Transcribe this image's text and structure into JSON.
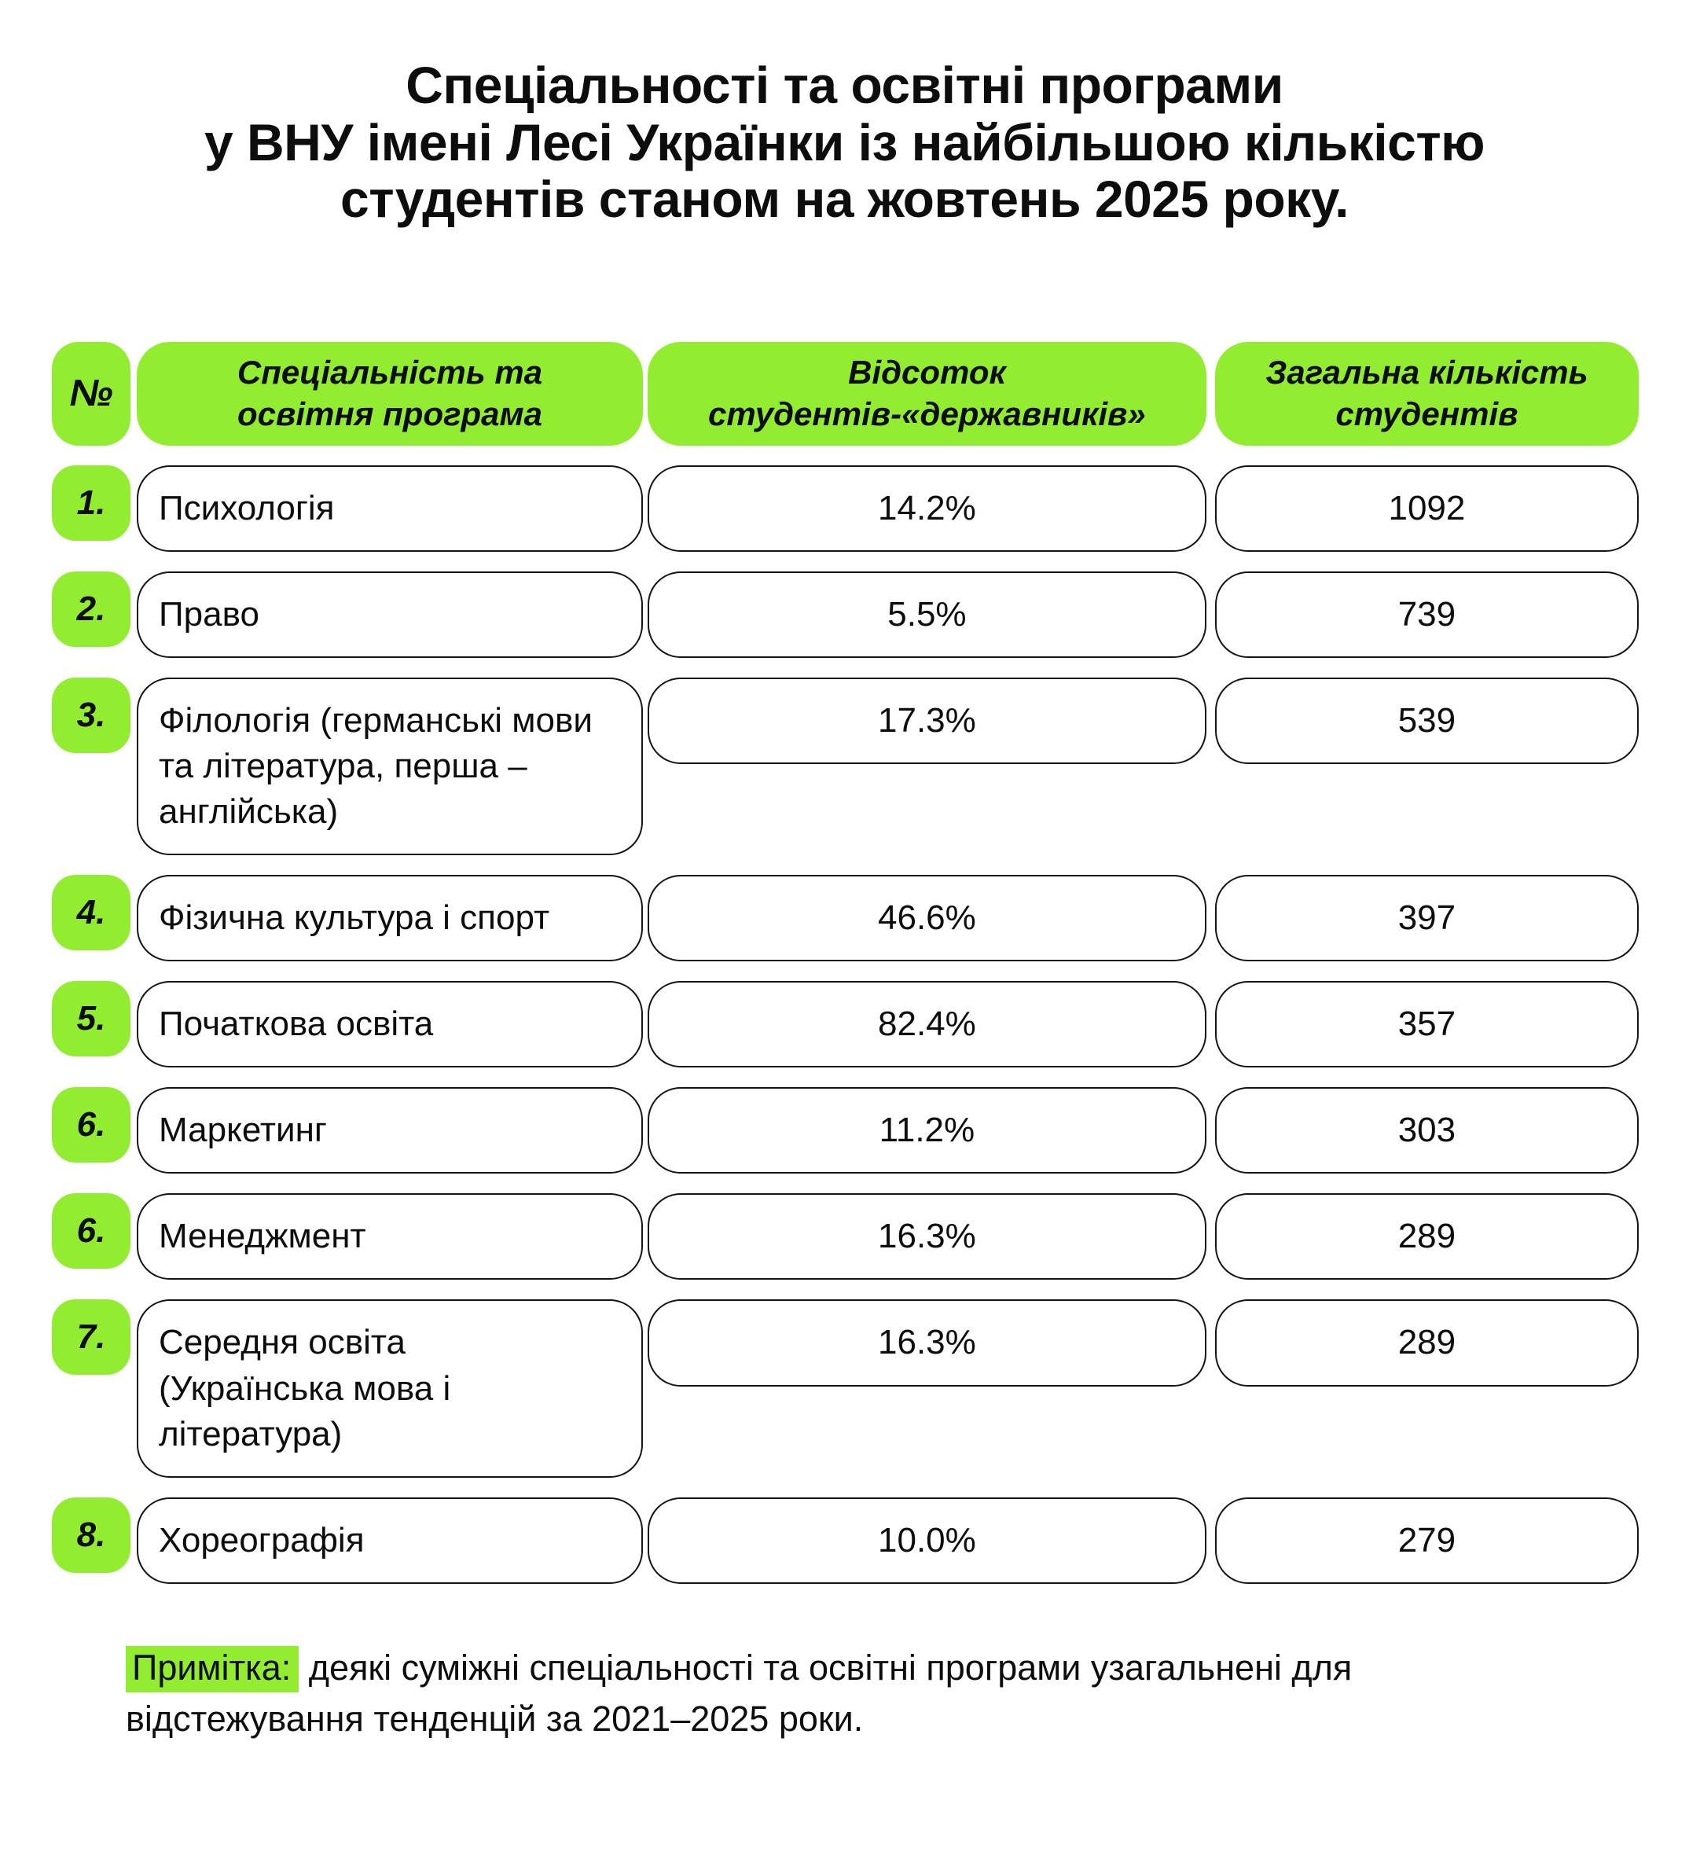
{
  "chart_data": {
    "type": "table",
    "title": "Спеціальності та освітні програми у ВНУ імені Лесі Українки із найбільшою кількістю студентів станом на жовтень 2025 року.",
    "columns": [
      "№",
      "Спеціальність та освітня програма",
      "Відсоток студентів-«державників»",
      "Загальна кількість студентів"
    ],
    "rows": [
      [
        "1.",
        "Психологія",
        "14.2%",
        1092
      ],
      [
        "2.",
        "Право",
        "5.5%",
        739
      ],
      [
        "3.",
        "Філологія (германські мови та література, перша – англійська)",
        "17.3%",
        539
      ],
      [
        "4.",
        "Фізична культура і спорт",
        "46.6%",
        397
      ],
      [
        "5.",
        "Початкова освіта",
        "82.4%",
        357
      ],
      [
        "6.",
        "Маркетинг",
        "11.2%",
        303
      ],
      [
        "6.",
        "Менеджмент",
        "16.3%",
        289
      ],
      [
        "7.",
        "Середня освіта (Українська мова і література)",
        "16.3%",
        289
      ],
      [
        "8.",
        "Хореографія",
        "10.0%",
        279
      ]
    ],
    "note": "Примітка: деякі суміжні спеціальності та освітні програми узагальнені для відстежування тенденцій за 2021–2025 роки.",
    "legend_position": "none",
    "grid": false
  },
  "ui": {
    "title": {
      "line1": "Спеціальності та освітні програми",
      "line2": "у ВНУ імені Лесі Українки із найбільшою кількістю",
      "line3": "студентів станом на жовтень 2025 року."
    },
    "headers": {
      "num": "№",
      "specialty": [
        "Спеціальність та",
        "освітня програма"
      ],
      "percent": [
        "Відсоток",
        "студентів-«державників»"
      ],
      "total": [
        "Загальна кількість",
        "студентів"
      ]
    },
    "specialty_display": [
      "Психологія",
      "Право",
      "Філологія (германські мови\nта література, перша –\nанглійська)",
      "Фізична культура і спорт",
      "Початкова освіта",
      "Маркетинг",
      "Менеджмент",
      "Середня освіта\n(Українська мова і\nлітература)",
      "Хореографія"
    ],
    "note": {
      "label": "Примітка:",
      "text": "деякі суміжні спеціальності та освітні програми узагальнені для відстежування тенденцій за 2021–2025 роки."
    },
    "colors": {
      "accent_green": "#92EC30",
      "text": "#0d0d0d",
      "cell_border": "#141414",
      "background": "#ffffff"
    }
  }
}
